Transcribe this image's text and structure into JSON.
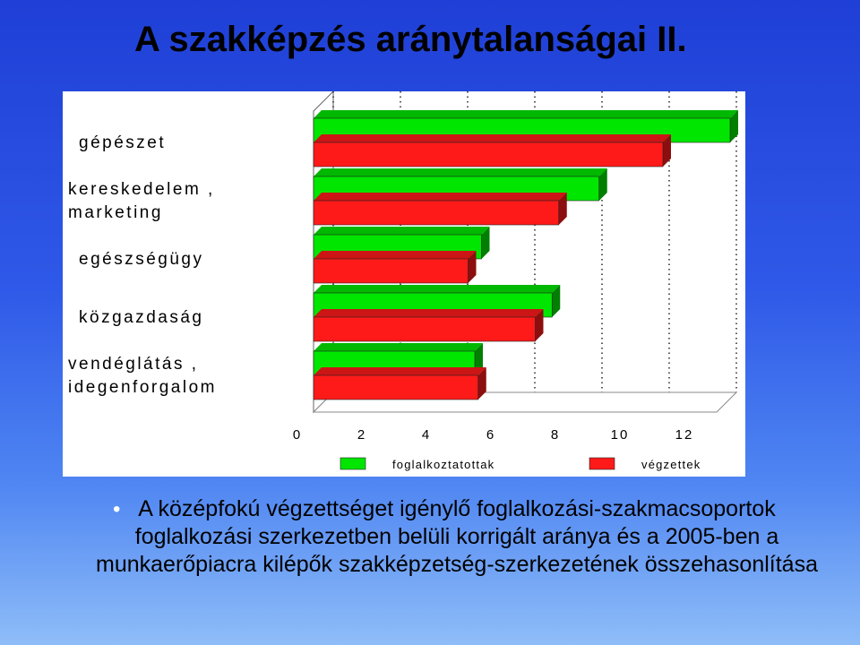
{
  "slide": {
    "title": "A szakképzés aránytalanságai II.",
    "bullet_symbol": "•",
    "caption": "A középfokú végzettséget igénylő foglalkozási-szakmacsoportok foglalkozási szerkezetben belüli korrigált aránya és a 2005-ben a munkaerőpiacra kilépők szakképzetség-szerkezetének összehasonlítása"
  },
  "colors": {
    "foglalkoztatottak": "#00e600",
    "vegzettek": "#ff1a1a"
  },
  "chart_data": {
    "type": "bar",
    "orientation": "horizontal",
    "style": "3d",
    "categories": [
      [
        "gépészet"
      ],
      [
        "kereskedelem ,",
        "marketing"
      ],
      [
        "egészségügy"
      ],
      [
        "közgazdaság"
      ],
      [
        "vendéglátás ,",
        "idegenforgalom"
      ]
    ],
    "series": [
      {
        "name": "foglalkoztatottak",
        "values": [
          12.4,
          8.5,
          5.0,
          7.1,
          4.8
        ]
      },
      {
        "name": "végzettek",
        "values": [
          10.4,
          7.3,
          4.6,
          6.6,
          4.9
        ]
      }
    ],
    "xlim": [
      0,
      12
    ],
    "xticks": [
      "0",
      "2",
      "4",
      "6",
      "8",
      "10",
      "12"
    ],
    "grid": true,
    "legend_position": "bottom"
  }
}
